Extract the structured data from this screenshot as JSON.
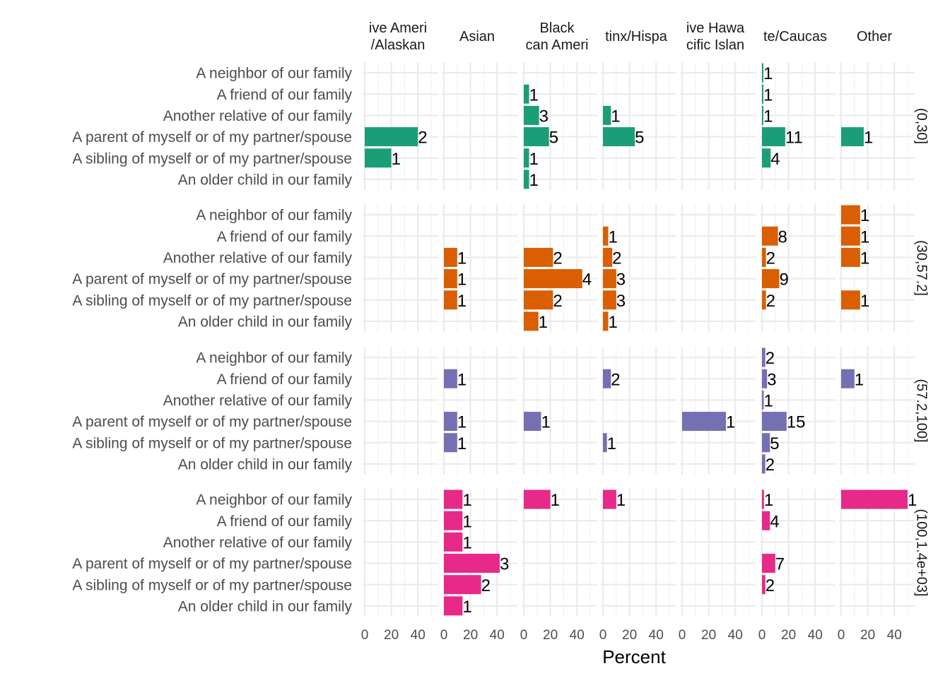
{
  "chart_data": {
    "type": "bar",
    "orientation": "horizontal",
    "xlabel": "Percent",
    "xlim": [
      0,
      50
    ],
    "xticks": [
      "0",
      "20",
      "40"
    ],
    "grid": true,
    "legend": "none",
    "categories": [
      "A neighbor of our family",
      "A friend of our family",
      "Another relative of our family",
      "A parent of myself or of my partner/spouse",
      "A sibling of myself or of my partner/spouse",
      "An older child in our family"
    ],
    "column_facets": [
      "ive Ameri\n/Alaskan",
      "Asian",
      "Black\ncan Ameri",
      "tinx/Hispa",
      "ive Hawa\ncific Islan",
      "te/Caucas",
      "Other"
    ],
    "row_facets": [
      "(0,30]",
      "(30,57.2]",
      "(57.2,100]",
      "(100,1.4e+03]"
    ],
    "row_colors": [
      "#1b9e77",
      "#d95f02",
      "#7570b3",
      "#e7298a"
    ],
    "panels": [
      [
        [
          null,
          null,
          null,
          40,
          20,
          null
        ],
        [
          null,
          null,
          null,
          null,
          null,
          null
        ],
        [
          null,
          4,
          11.5,
          19,
          4,
          4
        ],
        [
          null,
          null,
          6,
          24,
          null,
          null
        ],
        [
          null,
          null,
          null,
          null,
          null,
          null
        ],
        [
          1,
          1,
          1,
          17.5,
          6.5,
          null
        ],
        [
          null,
          null,
          null,
          17,
          null,
          null
        ]
      ],
      [
        [
          null,
          null,
          null,
          null,
          null,
          null
        ],
        [
          null,
          null,
          10,
          10,
          10,
          null
        ],
        [
          null,
          null,
          22,
          44,
          22,
          11
        ],
        [
          null,
          4,
          7,
          10,
          10,
          4
        ],
        [
          null,
          null,
          null,
          null,
          null,
          null
        ],
        [
          null,
          12,
          3,
          13,
          3,
          null
        ],
        [
          14.3,
          14.3,
          14.3,
          null,
          14.3,
          null
        ]
      ],
      [
        [
          null,
          null,
          null,
          null,
          null,
          null
        ],
        [
          null,
          10,
          null,
          10,
          10,
          null
        ],
        [
          null,
          null,
          null,
          13,
          null,
          null
        ],
        [
          null,
          6,
          null,
          null,
          3,
          null
        ],
        [
          null,
          null,
          null,
          33,
          null,
          null
        ],
        [
          2.5,
          3.8,
          1.3,
          18.5,
          6,
          2.5
        ],
        [
          null,
          10,
          null,
          null,
          null,
          null
        ]
      ],
      [
        [
          null,
          null,
          null,
          null,
          null,
          null
        ],
        [
          14,
          14,
          14,
          42,
          28,
          14
        ],
        [
          20,
          null,
          null,
          null,
          null,
          null
        ],
        [
          10,
          null,
          null,
          null,
          null,
          null
        ],
        [
          null,
          null,
          null,
          null,
          null,
          null
        ],
        [
          1.5,
          6,
          null,
          10,
          2.5,
          null
        ],
        [
          50,
          null,
          null,
          null,
          null,
          null
        ]
      ]
    ],
    "counts": [
      [
        [
          null,
          null,
          null,
          "2",
          "1",
          null
        ],
        [
          null,
          null,
          null,
          null,
          null,
          null
        ],
        [
          null,
          "1",
          "3",
          "5",
          "1",
          "1"
        ],
        [
          null,
          null,
          "1",
          "5",
          null,
          null
        ],
        [
          null,
          null,
          null,
          null,
          null,
          null
        ],
        [
          "1",
          "1",
          "1",
          "11",
          "4",
          null
        ],
        [
          null,
          null,
          null,
          "1",
          null,
          null
        ]
      ],
      [
        [
          null,
          null,
          null,
          null,
          null,
          null
        ],
        [
          null,
          null,
          "1",
          "1",
          "1",
          null
        ],
        [
          null,
          null,
          "2",
          "4",
          "2",
          "1"
        ],
        [
          null,
          "1",
          "2",
          "3",
          "3",
          "1"
        ],
        [
          null,
          null,
          null,
          null,
          null,
          null
        ],
        [
          null,
          "8",
          "2",
          "9",
          "2",
          null
        ],
        [
          "1",
          "1",
          "1",
          null,
          "1",
          null
        ]
      ],
      [
        [
          null,
          null,
          null,
          null,
          null,
          null
        ],
        [
          null,
          "1",
          null,
          "1",
          "1",
          null
        ],
        [
          null,
          null,
          null,
          "1",
          null,
          null
        ],
        [
          null,
          "2",
          null,
          null,
          "1",
          null
        ],
        [
          null,
          null,
          null,
          "1",
          null,
          null
        ],
        [
          "2",
          "3",
          "1",
          "15",
          "5",
          "2"
        ],
        [
          null,
          "1",
          null,
          null,
          null,
          null
        ]
      ],
      [
        [
          null,
          null,
          null,
          null,
          null,
          null
        ],
        [
          "1",
          "1",
          "1",
          "3",
          "2",
          "1"
        ],
        [
          "1",
          null,
          null,
          null,
          null,
          null
        ],
        [
          "1",
          null,
          null,
          null,
          null,
          null
        ],
        [
          null,
          null,
          null,
          null,
          null,
          null
        ],
        [
          "1",
          "4",
          null,
          "7",
          "2",
          null
        ],
        [
          "1",
          null,
          null,
          null,
          null,
          null
        ]
      ]
    ]
  }
}
